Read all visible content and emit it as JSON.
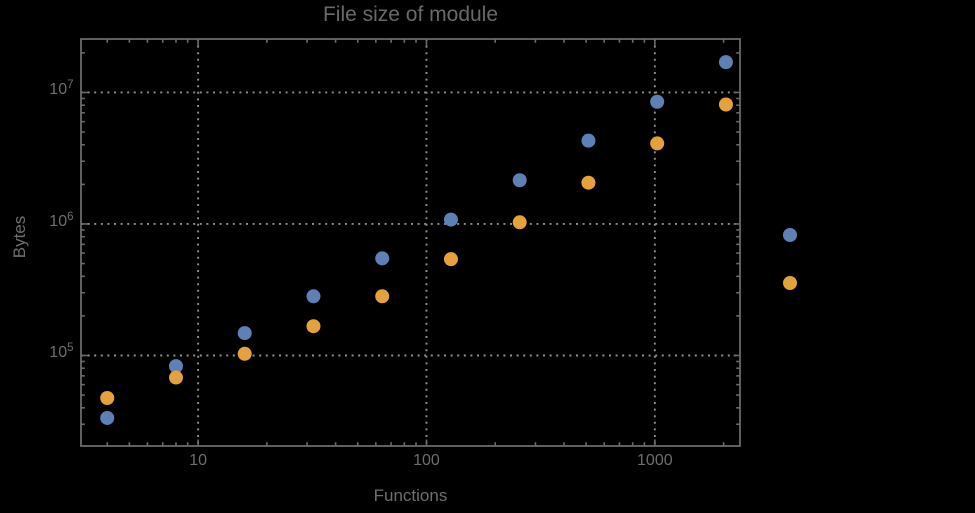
{
  "colors": {
    "background": "#000000",
    "frame": "#6a6a6a",
    "grid": "#8f8f8f",
    "text": "#6e6e6e",
    "series_blue": "#5E81B5",
    "series_orange": "#E5A23C"
  },
  "chart_data": {
    "type": "scatter",
    "title": "File size of module",
    "xlabel": "Functions",
    "ylabel": "Bytes",
    "x_scale": "log",
    "y_scale": "log",
    "xlim": [
      3.07,
      2360
    ],
    "ylim": [
      20500,
      25500000
    ],
    "grid": "dotted lines at decade ticks",
    "x_ticks_labeled": [
      {
        "value": 10,
        "label": "10"
      },
      {
        "value": 100,
        "label": "100"
      },
      {
        "value": 1000,
        "label": "1000"
      }
    ],
    "y_ticks_labeled": [
      {
        "value": 100000,
        "base": "10",
        "exp": "5"
      },
      {
        "value": 1000000,
        "base": "10",
        "exp": "6"
      },
      {
        "value": 10000000,
        "base": "10",
        "exp": "7"
      }
    ],
    "series": [
      {
        "name": "series-1-blue",
        "color": "#5E81B5",
        "points": [
          [
            4,
            33500
          ],
          [
            8,
            83000
          ],
          [
            16,
            148000
          ],
          [
            32,
            282000
          ],
          [
            64,
            548000
          ],
          [
            128,
            1080000
          ],
          [
            256,
            2150000
          ],
          [
            512,
            4300000
          ],
          [
            1024,
            8500000
          ],
          [
            2048,
            17000000
          ]
        ]
      },
      {
        "name": "series-2-orange",
        "color": "#E5A23C",
        "points": [
          [
            4,
            47500
          ],
          [
            8,
            68000
          ],
          [
            16,
            103000
          ],
          [
            32,
            167000
          ],
          [
            64,
            282000
          ],
          [
            128,
            540000
          ],
          [
            256,
            1030000
          ],
          [
            512,
            2060000
          ],
          [
            1024,
            4100000
          ],
          [
            2048,
            8100000
          ]
        ]
      }
    ],
    "legend": {
      "position": "outside-right",
      "entries": [
        {
          "marker_color": "#5E81B5",
          "label": ""
        },
        {
          "marker_color": "#E5A23C",
          "label": ""
        }
      ]
    }
  }
}
